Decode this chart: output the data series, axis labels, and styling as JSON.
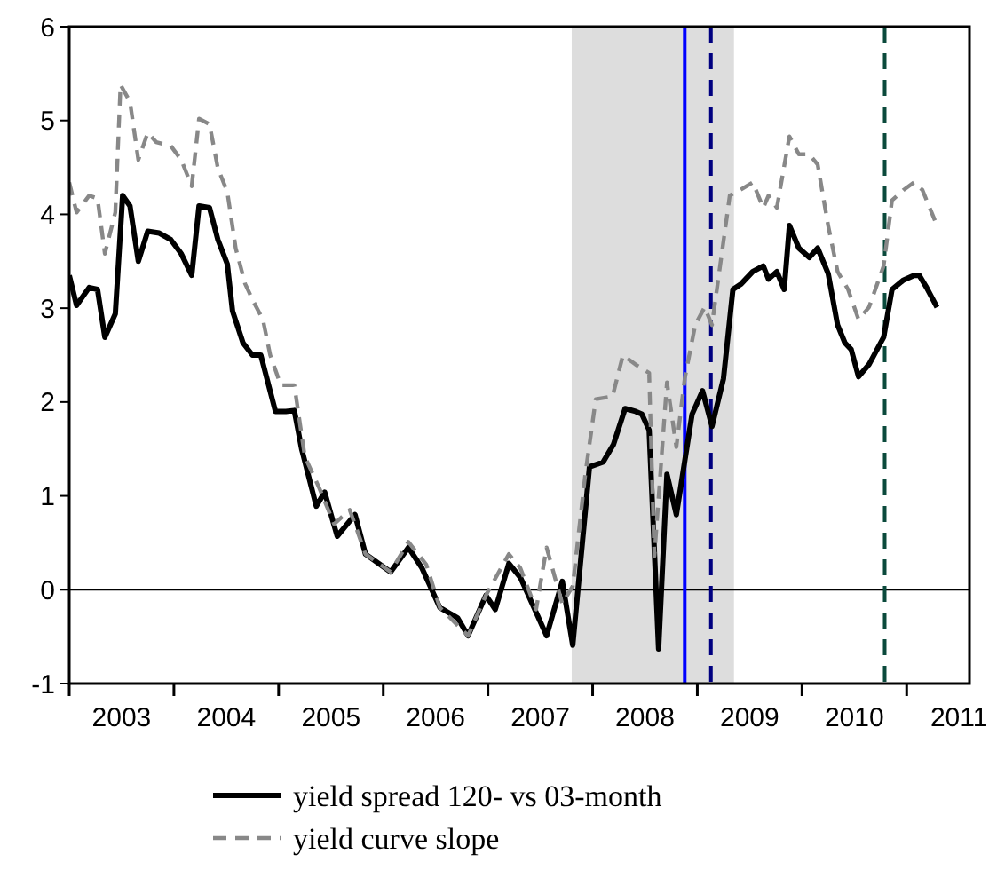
{
  "chart_data": {
    "type": "line",
    "xlim": [
      2003,
      2011.6
    ],
    "ylim": [
      -1,
      6
    ],
    "yticks": [
      -1,
      0,
      1,
      2,
      3,
      4,
      5,
      6
    ],
    "xticks": [
      {
        "value": 2003,
        "label": null
      },
      {
        "value": 2003.5,
        "label": "2003"
      },
      {
        "value": 2004,
        "label": null
      },
      {
        "value": 2004.5,
        "label": "2004"
      },
      {
        "value": 2005,
        "label": null
      },
      {
        "value": 2005.5,
        "label": "2005"
      },
      {
        "value": 2006,
        "label": null
      },
      {
        "value": 2006.5,
        "label": "2006"
      },
      {
        "value": 2007,
        "label": null
      },
      {
        "value": 2007.5,
        "label": "2007"
      },
      {
        "value": 2008,
        "label": null
      },
      {
        "value": 2008.5,
        "label": "2008"
      },
      {
        "value": 2009,
        "label": null
      },
      {
        "value": 2009.5,
        "label": "2009"
      },
      {
        "value": 2010,
        "label": null
      },
      {
        "value": 2010.5,
        "label": "2010"
      },
      {
        "value": 2011,
        "label": null
      },
      {
        "value": 2011.5,
        "label": "2011"
      }
    ],
    "grid": false,
    "legend": "bottom",
    "series": [
      {
        "name": "yield spread 120- vs 03-month",
        "color": "#000000",
        "line_style": "solid",
        "x": [
          2003.0,
          2003.07,
          2003.19,
          2003.27,
          2003.34,
          2003.44,
          2003.51,
          2003.58,
          2003.66,
          2003.75,
          2003.86,
          2003.97,
          2004.07,
          2004.17,
          2004.24,
          2004.34,
          2004.42,
          2004.51,
          2004.56,
          2004.66,
          2004.75,
          2004.83,
          2004.97,
          2005.07,
          2005.15,
          2005.22,
          2005.36,
          2005.44,
          2005.56,
          2005.73,
          2005.83,
          2006.07,
          2006.24,
          2006.37,
          2006.54,
          2006.71,
          2006.81,
          2006.98,
          2007.07,
          2007.2,
          2007.31,
          2007.56,
          2007.71,
          2007.81,
          2007.97,
          2008.1,
          2008.2,
          2008.31,
          2008.41,
          2008.47,
          2008.54,
          2008.63,
          2008.71,
          2008.8,
          2008.95,
          2009.05,
          2009.14,
          2009.25,
          2009.34,
          2009.42,
          2009.53,
          2009.63,
          2009.68,
          2009.76,
          2009.83,
          2009.88,
          2009.97,
          2010.07,
          2010.15,
          2010.25,
          2010.34,
          2010.41,
          2010.47,
          2010.54,
          2010.64,
          2010.78,
          2010.86,
          2010.97,
          2011.07,
          2011.12,
          2011.19,
          2011.29
        ],
        "values": [
          3.35,
          3.03,
          3.22,
          3.2,
          2.69,
          2.94,
          4.2,
          4.09,
          3.5,
          3.82,
          3.8,
          3.73,
          3.58,
          3.35,
          4.09,
          4.07,
          3.73,
          3.47,
          2.97,
          2.63,
          2.5,
          2.5,
          1.9,
          1.9,
          1.91,
          1.5,
          0.89,
          1.04,
          0.57,
          0.8,
          0.38,
          0.19,
          0.45,
          0.23,
          -0.19,
          -0.3,
          -0.49,
          -0.06,
          -0.21,
          0.28,
          0.13,
          -0.49,
          0.09,
          -0.59,
          1.31,
          1.36,
          1.55,
          1.93,
          1.9,
          1.87,
          1.7,
          -0.63,
          1.23,
          0.8,
          1.87,
          2.12,
          1.74,
          2.25,
          3.2,
          3.26,
          3.39,
          3.45,
          3.31,
          3.39,
          3.2,
          3.88,
          3.64,
          3.54,
          3.64,
          3.37,
          2.82,
          2.63,
          2.56,
          2.27,
          2.4,
          2.69,
          3.2,
          3.3,
          3.35,
          3.35,
          3.22,
          3.01
        ]
      },
      {
        "name": "yield curve slope",
        "color": "#888888",
        "line_style": "dashed",
        "x": [
          2003.0,
          2003.07,
          2003.19,
          2003.27,
          2003.34,
          2003.44,
          2003.49,
          2003.58,
          2003.66,
          2003.75,
          2003.83,
          2003.97,
          2004.07,
          2004.17,
          2004.24,
          2004.34,
          2004.42,
          2004.51,
          2004.59,
          2004.68,
          2004.76,
          2004.85,
          2004.92,
          2005.02,
          2005.15,
          2005.25,
          2005.39,
          2005.53,
          2005.68,
          2005.83,
          2006.07,
          2006.24,
          2006.41,
          2006.54,
          2006.81,
          2006.98,
          2007.2,
          2007.31,
          2007.46,
          2007.56,
          2007.71,
          2007.81,
          2007.93,
          2008.03,
          2008.19,
          2008.29,
          2008.41,
          2008.54,
          2008.59,
          2008.71,
          2008.8,
          2008.88,
          2008.98,
          2009.07,
          2009.14,
          2009.31,
          2009.41,
          2009.53,
          2009.63,
          2009.68,
          2009.76,
          2009.88,
          2009.97,
          2010.07,
          2010.15,
          2010.25,
          2010.34,
          2010.44,
          2010.54,
          2010.64,
          2010.78,
          2010.86,
          2010.97,
          2011.07,
          2011.15,
          2011.29
        ],
        "values": [
          4.34,
          4.02,
          4.2,
          4.17,
          3.58,
          4.02,
          5.38,
          5.2,
          4.58,
          4.87,
          4.77,
          4.73,
          4.58,
          4.3,
          5.02,
          4.96,
          4.49,
          4.24,
          3.64,
          3.26,
          3.07,
          2.88,
          2.5,
          2.18,
          2.18,
          1.42,
          1.08,
          0.7,
          0.85,
          0.38,
          0.19,
          0.51,
          0.27,
          -0.19,
          -0.49,
          -0.06,
          0.38,
          0.23,
          -0.21,
          0.45,
          -0.15,
          0.04,
          1.23,
          2.03,
          2.06,
          2.5,
          2.4,
          2.31,
          0.36,
          2.21,
          1.52,
          2.25,
          2.82,
          3.01,
          2.82,
          4.2,
          4.26,
          4.34,
          4.07,
          4.2,
          4.07,
          4.83,
          4.64,
          4.64,
          4.53,
          3.88,
          3.39,
          3.2,
          2.88,
          3.01,
          3.45,
          4.15,
          4.26,
          4.34,
          4.26,
          3.88
        ]
      }
    ],
    "bands": [
      {
        "axis": "x",
        "from": 2007.8,
        "to": 2009.35,
        "color": "#dddddd"
      }
    ],
    "ref_lines": [
      {
        "axis": "y",
        "value": 0,
        "color": "#000000",
        "line_style": "solid"
      },
      {
        "axis": "x",
        "value": 2008.88,
        "color": "#0000ff",
        "line_style": "solid"
      },
      {
        "axis": "x",
        "value": 2009.13,
        "color": "#000080",
        "line_style": "dashed"
      },
      {
        "axis": "x",
        "value": 2010.79,
        "color": "#0b4a3c",
        "line_style": "dashed"
      }
    ]
  }
}
